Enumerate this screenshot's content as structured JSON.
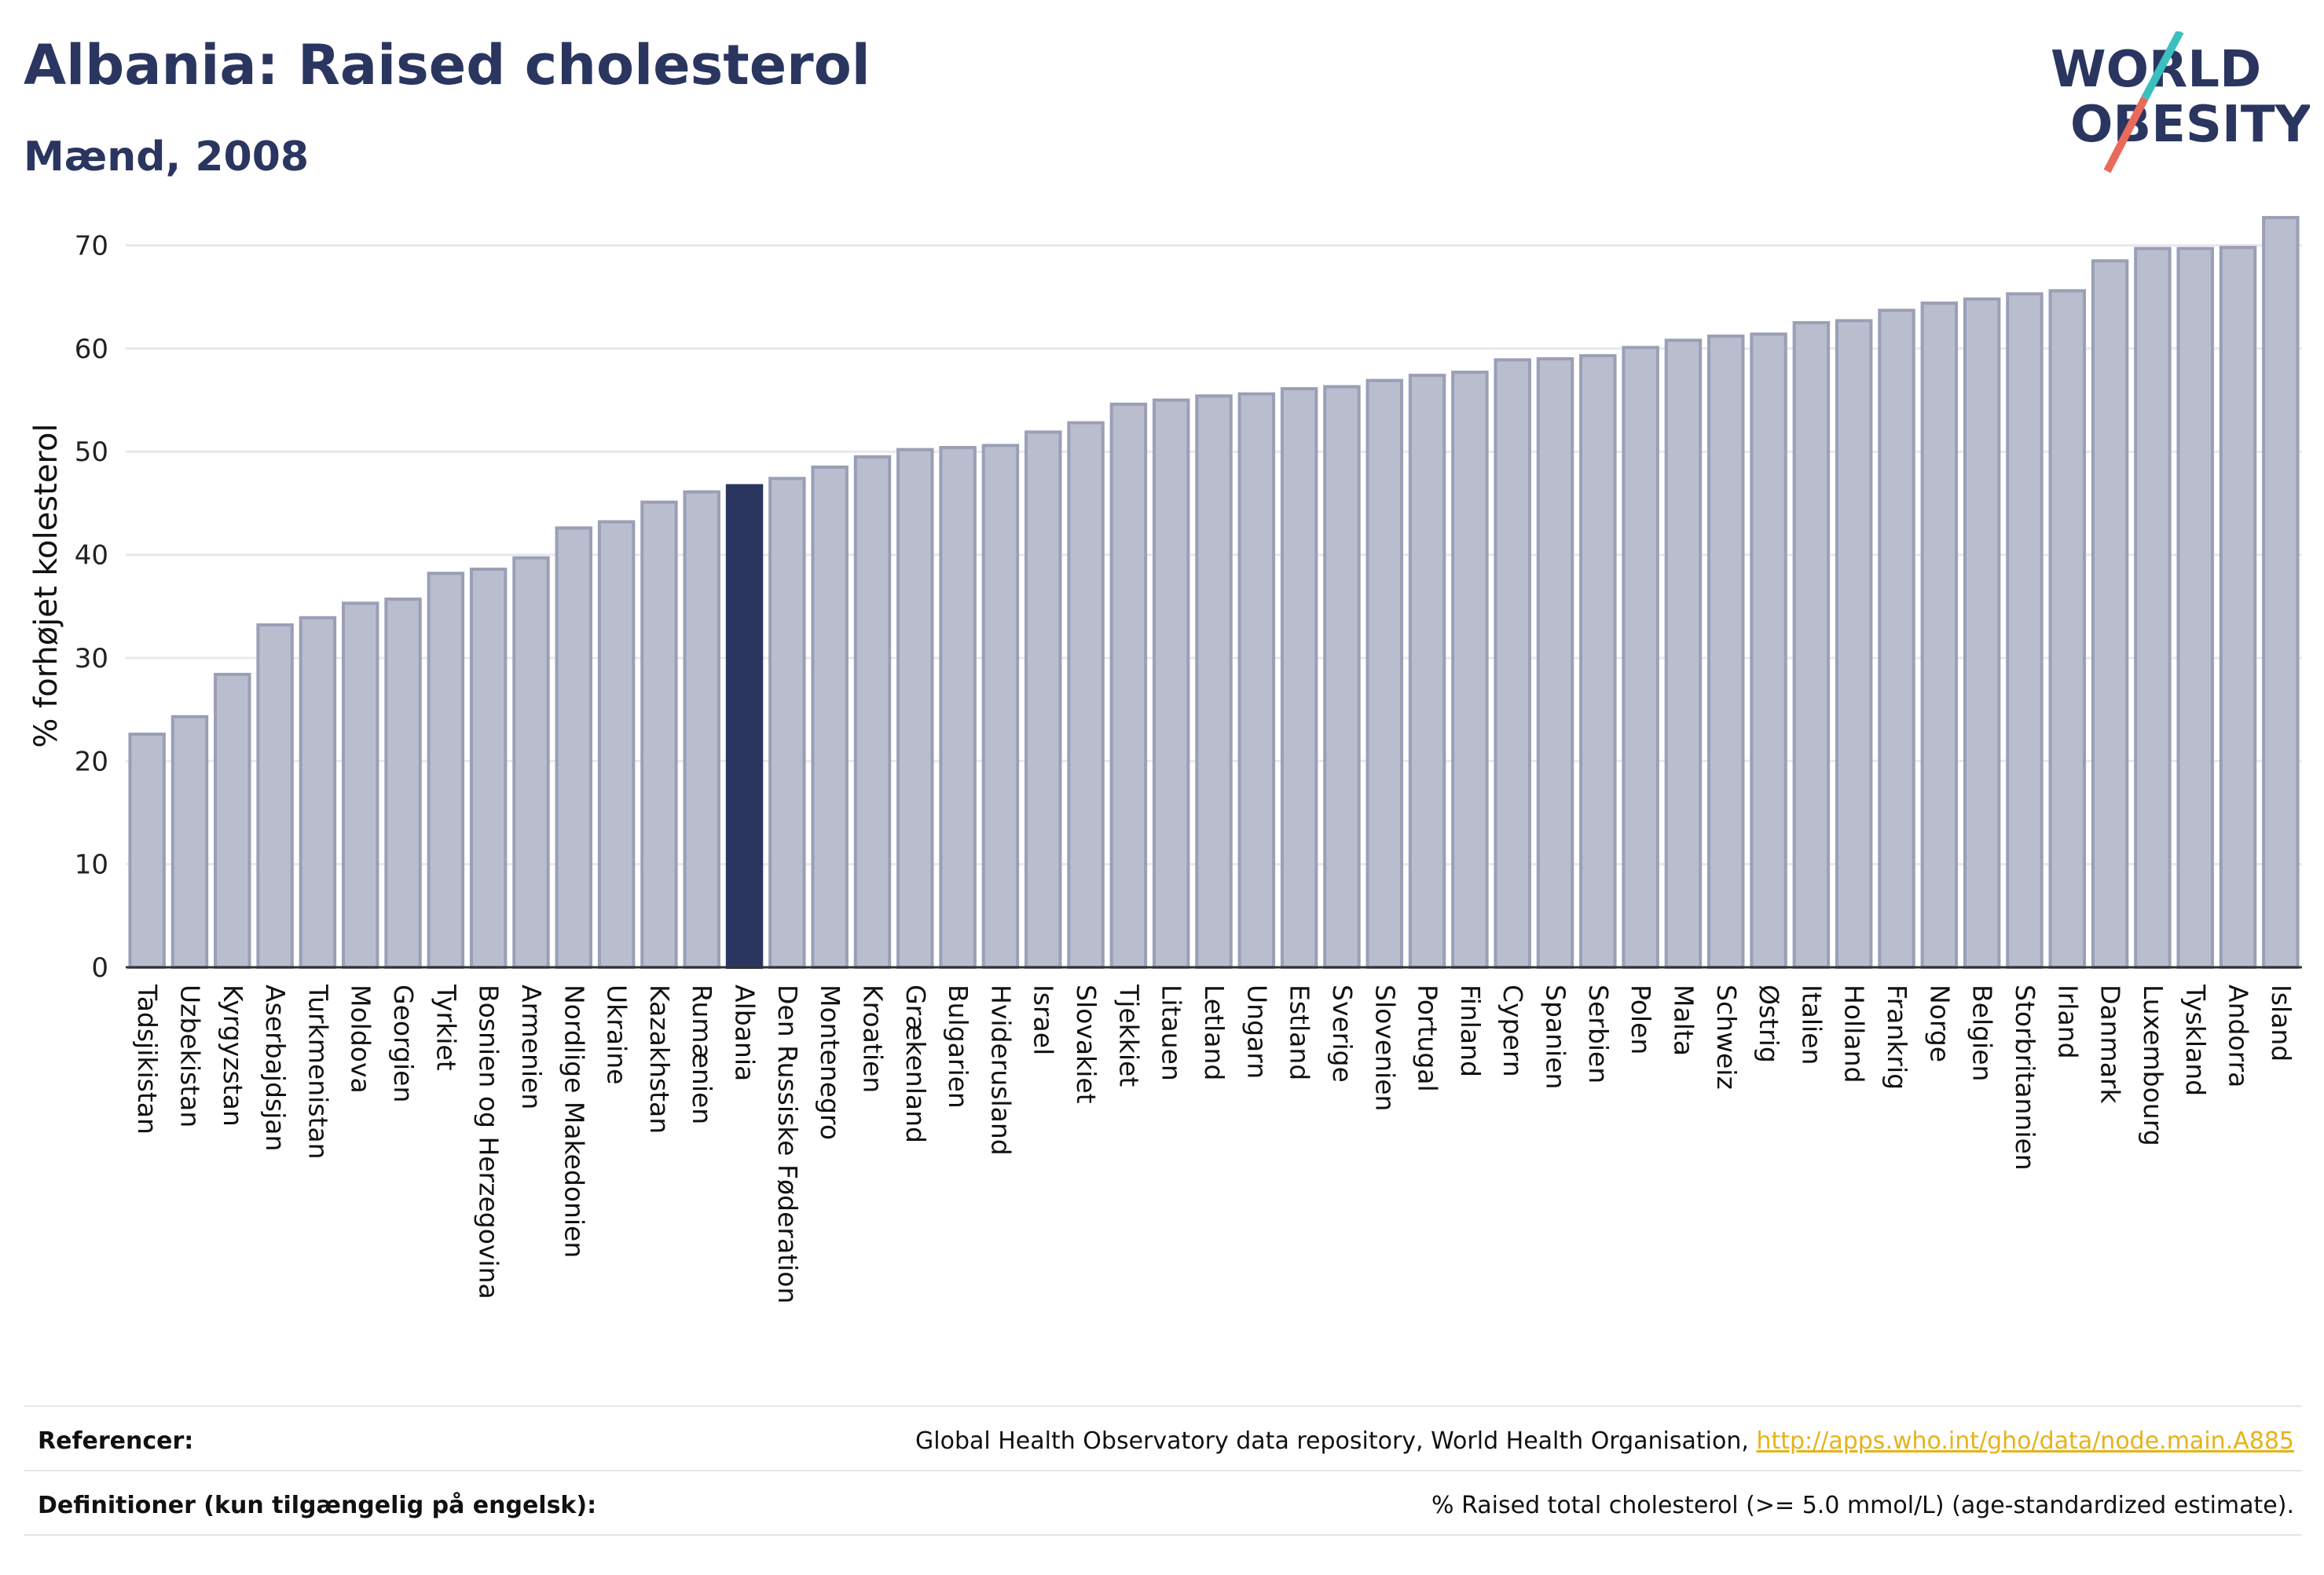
{
  "header": {
    "title": "Albania: Raised cholesterol",
    "subtitle": "Mænd, 2008"
  },
  "logo": {
    "line1": "WORLD",
    "line2": "OBESITY",
    "colors": {
      "text": "#2a3560",
      "slash_teal": "#3bbfbf",
      "slash_coral": "#e96a5a"
    }
  },
  "colors": {
    "bar_fill": "#b9bdcd",
    "bar_stroke": "#9a9fb6",
    "highlight_fill": "#2a3560",
    "gridline": "#e8e8ee",
    "axis": "#333333"
  },
  "chart_data": {
    "type": "bar",
    "ylabel": "% forhøjet kolesterol",
    "ylim": [
      0,
      74
    ],
    "yticks": [
      0,
      10,
      20,
      30,
      40,
      50,
      60,
      70
    ],
    "grid": true,
    "highlight": "Albania",
    "categories": [
      "Tadsjikistan",
      "Uzbekistan",
      "Kyrgyzstan",
      "Aserbajdsjan",
      "Turkmenistan",
      "Moldova",
      "Georgien",
      "Tyrkiet",
      "Bosnien og Herzegovina",
      "Armenien",
      "Nordlige Makedonien",
      "Ukraine",
      "Kazakhstan",
      "Rumænien",
      "Albania",
      "Den Russiske Føderation",
      "Montenegro",
      "Kroatien",
      "Grækenland",
      "Bulgarien",
      "Hviderusland",
      "Israel",
      "Slovakiet",
      "Tjekkiet",
      "Litauen",
      "Letland",
      "Ungarn",
      "Estland",
      "Sverige",
      "Slovenien",
      "Portugal",
      "Finland",
      "Cypern",
      "Spanien",
      "Serbien",
      "Polen",
      "Malta",
      "Schweiz",
      "Østrig",
      "Italien",
      "Holland",
      "Frankrig",
      "Norge",
      "Belgien",
      "Storbritannien",
      "Irland",
      "Danmark",
      "Luxembourg",
      "Tyskland",
      "Andorra",
      "Island"
    ],
    "values": [
      22.6,
      24.3,
      28.4,
      33.2,
      33.9,
      35.3,
      35.7,
      38.2,
      38.6,
      39.7,
      42.6,
      43.2,
      45.1,
      46.1,
      46.7,
      47.4,
      48.5,
      49.5,
      50.2,
      50.4,
      50.6,
      51.9,
      52.8,
      54.6,
      55.0,
      55.4,
      55.6,
      56.1,
      56.3,
      56.9,
      57.4,
      57.7,
      58.9,
      59.0,
      59.3,
      60.1,
      60.8,
      61.2,
      61.4,
      62.5,
      62.7,
      63.7,
      64.4,
      64.8,
      65.3,
      65.6,
      68.5,
      69.7,
      69.7,
      69.8,
      72.7
    ]
  },
  "footer": {
    "references_label": "Referencer:",
    "references_text": "Global Health Observatory data repository, World Health Organisation, ",
    "references_link": "http://apps.who.int/gho/data/node.main.A885",
    "definitions_label": "Definitioner (kun tilgængelig på engelsk):",
    "definitions_text": "% Raised total cholesterol (>= 5.0 mmol/L) (age-standardized estimate)."
  }
}
